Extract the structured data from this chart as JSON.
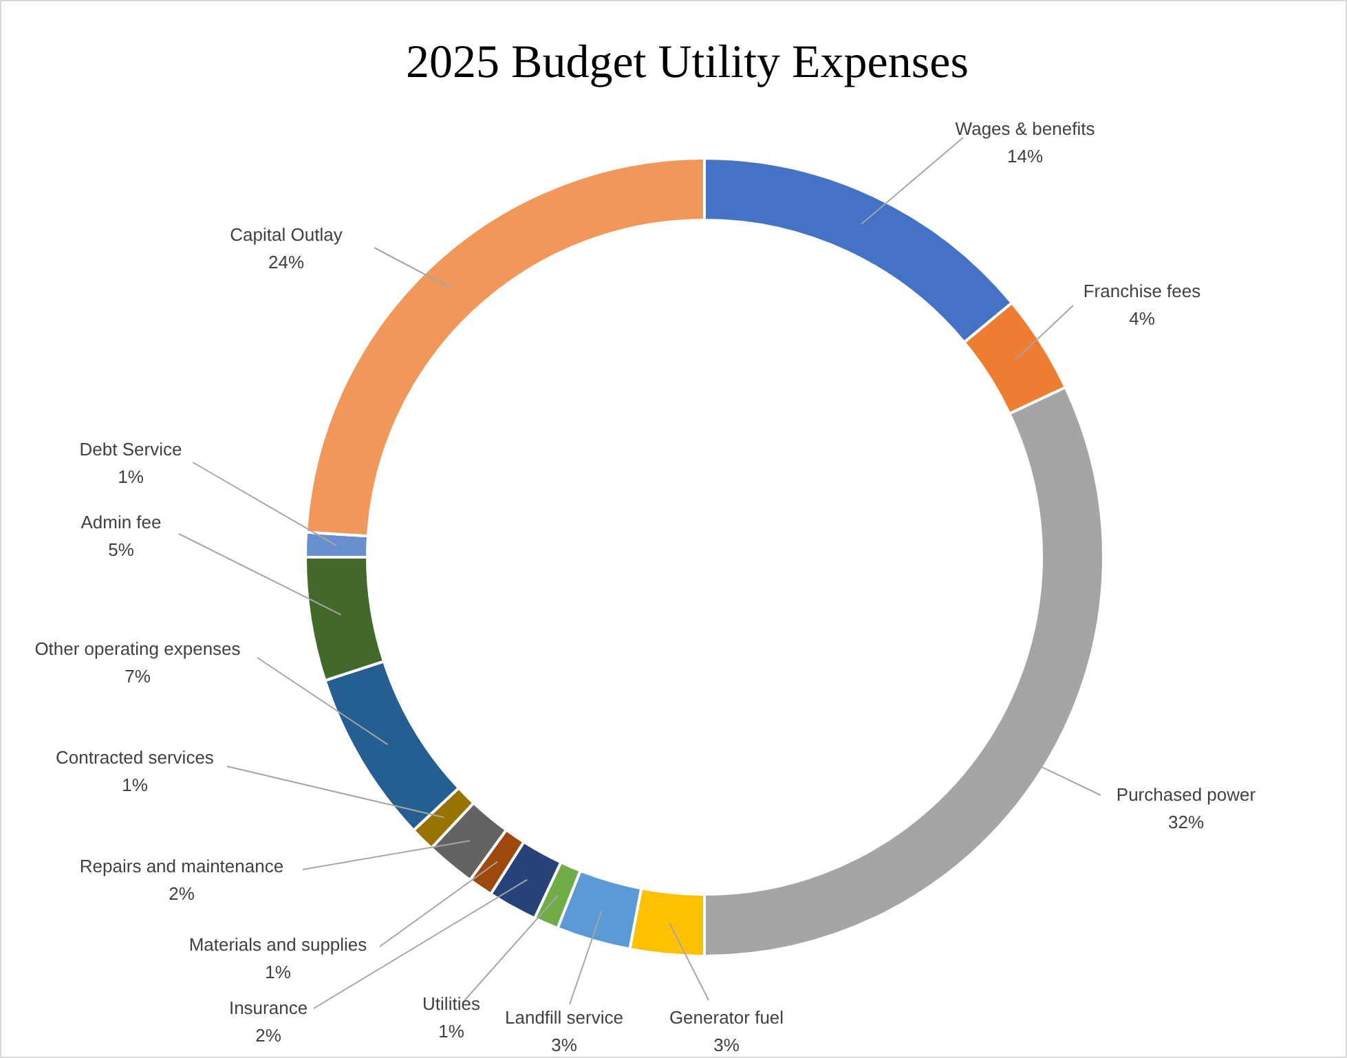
{
  "chart_data": {
    "type": "donut",
    "title": "2025 Budget Utility Expenses",
    "categories": [
      "Wages & benefits",
      "Franchise fees",
      "Purchased power",
      "Generator fuel",
      "Landfill service",
      "Utilities",
      "Insurance",
      "Materials and supplies",
      "Repairs and maintenance",
      "Contracted services",
      "Other operating expenses",
      "Admin fee",
      "Debt Service",
      "Capital Outlay"
    ],
    "values": [
      14,
      4,
      32,
      3,
      3,
      1,
      2,
      1,
      2,
      1,
      7,
      5,
      1,
      24
    ],
    "value_labels": [
      "14%",
      "4%",
      "32%",
      "3%",
      "3%",
      "1%",
      "2%",
      "1%",
      "2%",
      "1%",
      "7%",
      "5%",
      "1%",
      "24%"
    ],
    "colors": [
      "#4472c4",
      "#ed7d31",
      "#a5a5a5",
      "#ffc000",
      "#5b9bd5",
      "#70ad47",
      "#264478",
      "#9e480e",
      "#636363",
      "#997300",
      "#255e91",
      "#43682b",
      "#698ed0",
      "#f1975a"
    ]
  }
}
